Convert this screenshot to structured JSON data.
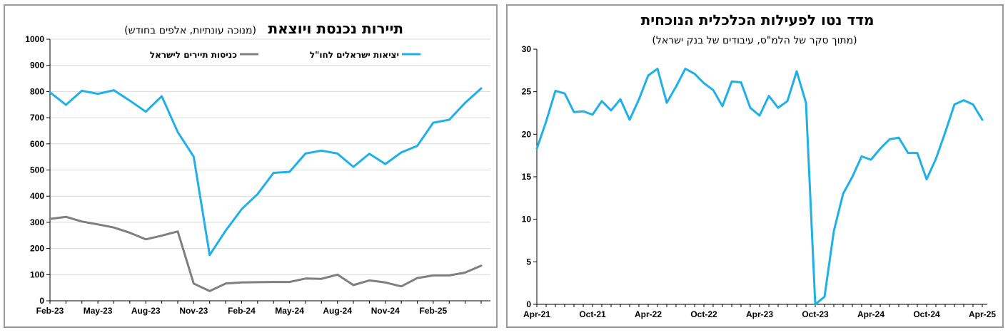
{
  "charts": [
    {
      "title": "תיירות נכנסת ויוצאת",
      "subtitle": "(מנוכה עונתיות, אלפים בחודש)",
      "chart_data": {
        "type": "line",
        "title": "תיירות נכנסת ויוצאת",
        "subtitle": "(מנוכה עונתיות, אלפים בחודש)",
        "ylim": [
          0,
          1000
        ],
        "yticks": [
          0,
          100,
          200,
          300,
          400,
          500,
          600,
          700,
          800,
          900,
          1000
        ],
        "x_tick_labels": [
          "Feb-23",
          "May-23",
          "Aug-23",
          "Nov-23",
          "Feb-24",
          "May-24",
          "Aug-24",
          "Nov-24",
          "Feb-25"
        ],
        "x_tick_index": [
          0,
          3,
          6,
          9,
          12,
          15,
          18,
          21,
          24
        ],
        "grid": true,
        "legend_position": "top",
        "series": [
          {
            "name": "יציאות ישראלים לחו\"ל",
            "color": "#1fb0e8",
            "values": [
              797,
              749,
              803,
              791,
              805,
              765,
              723,
              782,
              645,
              551,
              175,
              268,
              350,
              408,
              489,
              493,
              563,
              574,
              563,
              512,
              562,
              523,
              567,
              592,
              681,
              692,
              757,
              812
            ]
          },
          {
            "name": "כניסות תיירים לישראל",
            "color": "#7f7f7f",
            "values": [
              313,
              321,
              303,
              292,
              280,
              260,
              235,
              249,
              265,
              66,
              37,
              66,
              70,
              71,
              72,
              72,
              85,
              84,
              100,
              60,
              78,
              70,
              55,
              87,
              97,
              97,
              108,
              134
            ]
          }
        ]
      }
    },
    {
      "title": "מדד נטו לפעילות הכלכלית הנוכחית",
      "subtitle": "(מתוך סקר של הלמ\"ס, עיבודים של בנק ישראל)",
      "chart_data": {
        "type": "line",
        "title": "מדד נטו לפעילות הכלכלית הנוכחית",
        "subtitle": "(מתוך סקר של הלמ\"ס, עיבודים של בנק ישראל)",
        "ylim": [
          0,
          30
        ],
        "yticks": [
          0,
          5,
          10,
          15,
          20,
          25,
          30
        ],
        "x_tick_labels": [
          "Apr-21",
          "Oct-21",
          "Apr-22",
          "Oct-22",
          "Apr-23",
          "Oct-23",
          "Apr-24",
          "Oct-24",
          "Apr-25"
        ],
        "x_tick_index": [
          0,
          6,
          12,
          18,
          24,
          30,
          36,
          42,
          48
        ],
        "grid": false,
        "series": [
          {
            "name": "",
            "color": "#1fb0e8",
            "values": [
              18.3,
              21.5,
              25.1,
              24.8,
              22.6,
              22.7,
              22.3,
              23.9,
              22.8,
              24.1,
              21.7,
              24.1,
              26.9,
              27.7,
              23.7,
              25.6,
              27.7,
              27.1,
              26.0,
              25.2,
              23.3,
              26.2,
              26.1,
              23.1,
              22.2,
              24.5,
              23.1,
              23.9,
              27.4,
              23.7,
              0.0,
              0.9,
              8.6,
              13.0,
              15.0,
              17.4,
              17.0,
              18.3,
              19.4,
              19.6,
              17.8,
              17.8,
              14.7,
              17.1,
              20.2,
              23.5,
              24.0,
              23.5,
              21.7
            ]
          }
        ]
      }
    }
  ]
}
